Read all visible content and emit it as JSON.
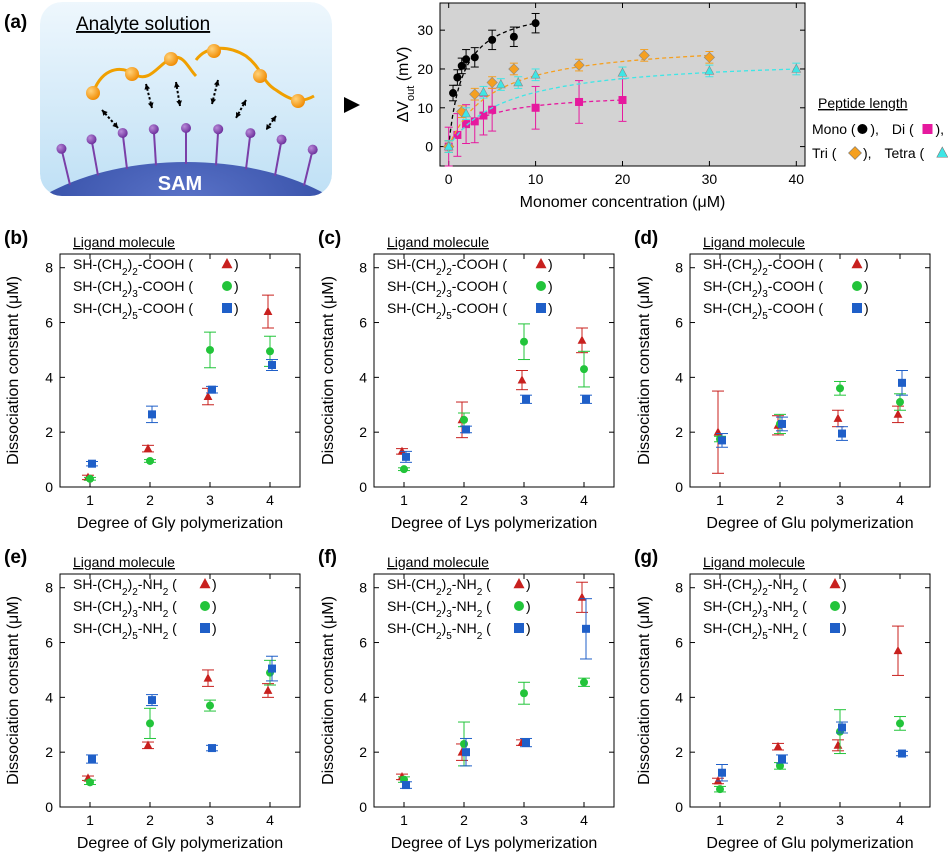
{
  "panel_a": {
    "label": "(a)",
    "schematic": {
      "title": "Analyte solution",
      "surface_label": "SAM"
    },
    "legend": {
      "title": "Peptide length",
      "entries": [
        {
          "text": "Mono (",
          "sep": "), "
        },
        {
          "text": "Di (",
          "sep": "),"
        },
        {
          "text": "Tri (",
          "sep": "), "
        },
        {
          "text": "Tetra (",
          "sep": ")"
        }
      ]
    }
  },
  "chart_data": [
    {
      "id": "a",
      "type": "scatter",
      "xlabel": "Monomer concentration (μM)",
      "ylabel_main": "ΔV",
      "ylabel_sub": "out",
      "ylabel_unit": " (mV)",
      "xlim": [
        -1,
        41
      ],
      "ylim": [
        -5,
        37
      ],
      "xticks": [
        0,
        10,
        20,
        30,
        40
      ],
      "yticks": [
        0,
        10,
        20,
        30
      ],
      "background": "#d3d3d3",
      "series": [
        {
          "name": "Mono",
          "marker": "circle",
          "color": "#000000",
          "fit_color": "#000000",
          "x": [
            0,
            0.5,
            1,
            1.5,
            2,
            3,
            5,
            7.5,
            10
          ],
          "y": [
            0,
            13.8,
            17.8,
            20.8,
            22.5,
            23.0,
            27.5,
            28.3,
            31.8
          ],
          "err": [
            1.5,
            2.0,
            2.0,
            2.0,
            2.5,
            2.5,
            2.5,
            2.5,
            2.5
          ]
        },
        {
          "name": "Di",
          "marker": "square",
          "color": "#e6199e",
          "fit_color": "#e6199e",
          "x": [
            0,
            1,
            2,
            3,
            4,
            5,
            10,
            15,
            20
          ],
          "y": [
            0,
            3.0,
            5.8,
            6.5,
            8.0,
            9.5,
            10.0,
            11.5,
            12.0
          ],
          "err": [
            5.0,
            5.5,
            5.0,
            5.5,
            5.0,
            5.5,
            5.5,
            5.5,
            5.5
          ]
        },
        {
          "name": "Tri",
          "marker": "diamond",
          "color": "#f5a020",
          "fit_color": "#f5a020",
          "x": [
            0,
            1.5,
            3,
            5,
            7.5,
            15,
            22.5,
            30
          ],
          "y": [
            0,
            9.0,
            13.5,
            16.5,
            20.0,
            21.0,
            23.5,
            23.0
          ],
          "err": [
            1.5,
            1.5,
            1.5,
            1.5,
            1.5,
            1.5,
            1.5,
            1.5
          ]
        },
        {
          "name": "Tetra",
          "marker": "triangle",
          "color": "#3ee6e6",
          "fit_color": "#3ee6e6",
          "x": [
            0,
            2,
            4,
            6,
            8,
            10,
            20,
            30,
            40
          ],
          "y": [
            0,
            8.5,
            14.0,
            16.0,
            16.5,
            18.5,
            19.0,
            19.5,
            20.0
          ],
          "err": [
            1.5,
            1.5,
            1.5,
            1.5,
            1.5,
            1.5,
            1.5,
            1.5,
            1.5
          ]
        }
      ]
    },
    {
      "id": "b",
      "type": "scatter",
      "panel_label": "(b)",
      "xlabel": "Degree of Gly polymerization",
      "ylabel": "Dissociation constant (μM)",
      "xlim": [
        0.5,
        4.5
      ],
      "ylim": [
        0,
        8.5
      ],
      "xticks": [
        1,
        2,
        3,
        4
      ],
      "yticks": [
        0,
        2,
        4,
        6,
        8
      ],
      "legend_title": "Ligand molecule",
      "series": [
        {
          "prefix": "SH-(CH",
          "n": "2",
          "suffix": ")",
          "n2": "2",
          "group": "-COOH (",
          "close": ")",
          "marker": "triangle",
          "color": "#c8201e",
          "x": [
            1,
            2,
            3,
            4
          ],
          "y": [
            0.35,
            1.4,
            3.3,
            6.4
          ],
          "err": [
            0.08,
            0.12,
            0.3,
            0.6
          ]
        },
        {
          "prefix": "SH-(CH",
          "n": "2",
          "suffix": ")",
          "n2": "3",
          "group": "-COOH (",
          "close": ")",
          "marker": "circle",
          "color": "#22c43a",
          "x": [
            1,
            2,
            3,
            4
          ],
          "y": [
            0.3,
            0.95,
            5.0,
            4.95
          ],
          "err": [
            0.05,
            0.05,
            0.65,
            0.55
          ]
        },
        {
          "prefix": "SH-(CH",
          "n": "2",
          "suffix": ")",
          "n2": "5",
          "group": "-COOH (",
          "close": ")",
          "marker": "square",
          "color": "#1f5fc8",
          "x": [
            1,
            2,
            3,
            4
          ],
          "y": [
            0.85,
            2.65,
            3.55,
            4.45
          ],
          "err": [
            0.08,
            0.3,
            0.12,
            0.2
          ]
        }
      ]
    },
    {
      "id": "c",
      "type": "scatter",
      "panel_label": "(c)",
      "xlabel": "Degree of Lys polymerization",
      "ylabel": "Dissociation constant (μM)",
      "xlim": [
        0.5,
        4.5
      ],
      "ylim": [
        0,
        8.5
      ],
      "xticks": [
        1,
        2,
        3,
        4
      ],
      "yticks": [
        0,
        2,
        4,
        6,
        8
      ],
      "legend_title": "Ligand molecule",
      "series": [
        {
          "prefix": "SH-(CH",
          "n": "2",
          "suffix": ")",
          "n2": "2",
          "group": "-COOH (",
          "close": ")",
          "marker": "triangle",
          "color": "#c8201e",
          "x": [
            1,
            2,
            3,
            4
          ],
          "y": [
            1.3,
            2.45,
            3.9,
            5.35
          ],
          "err": [
            0.1,
            0.65,
            0.35,
            0.45
          ]
        },
        {
          "prefix": "SH-(CH",
          "n": "2",
          "suffix": ")",
          "n2": "3",
          "group": "-COOH (",
          "close": ")",
          "marker": "circle",
          "color": "#22c43a",
          "x": [
            1,
            2,
            3,
            4
          ],
          "y": [
            0.65,
            2.45,
            5.3,
            4.3
          ],
          "err": [
            0.05,
            0.25,
            0.65,
            0.65
          ]
        },
        {
          "prefix": "SH-(CH",
          "n": "2",
          "suffix": ")",
          "n2": "5",
          "group": "-COOH (",
          "close": ")",
          "marker": "square",
          "color": "#1f5fc8",
          "x": [
            1,
            2,
            3,
            4
          ],
          "y": [
            1.1,
            2.1,
            3.2,
            3.2
          ],
          "err": [
            0.2,
            0.12,
            0.15,
            0.15
          ]
        }
      ]
    },
    {
      "id": "d",
      "type": "scatter",
      "panel_label": "(d)",
      "xlabel": "Degree of Glu polymerization",
      "ylabel": "Dissociation constant (μM)",
      "xlim": [
        0.5,
        4.5
      ],
      "ylim": [
        0,
        8.5
      ],
      "xticks": [
        1,
        2,
        3,
        4
      ],
      "yticks": [
        0,
        2,
        4,
        6,
        8
      ],
      "legend_title": "Ligand molecule",
      "series": [
        {
          "prefix": "SH-(CH",
          "n": "2",
          "suffix": ")",
          "n2": "2",
          "group": "-COOH (",
          "close": ")",
          "marker": "triangle",
          "color": "#c8201e",
          "x": [
            1,
            2,
            3,
            4
          ],
          "y": [
            2.0,
            2.25,
            2.5,
            2.65
          ],
          "err": [
            1.5,
            0.35,
            0.3,
            0.3
          ]
        },
        {
          "prefix": "SH-(CH",
          "n": "2",
          "suffix": ")",
          "n2": "3",
          "group": "-COOH (",
          "close": ")",
          "marker": "circle",
          "color": "#22c43a",
          "x": [
            1,
            2,
            3,
            4
          ],
          "y": [
            1.75,
            2.3,
            3.6,
            3.1
          ],
          "err": [
            0.1,
            0.35,
            0.25,
            0.3
          ]
        },
        {
          "prefix": "SH-(CH",
          "n": "2",
          "suffix": ")",
          "n2": "5",
          "group": "-COOH (",
          "close": ")",
          "marker": "square",
          "color": "#1f5fc8",
          "x": [
            1,
            2,
            3,
            4
          ],
          "y": [
            1.7,
            2.3,
            1.95,
            3.8
          ],
          "err": [
            0.25,
            0.25,
            0.25,
            0.45
          ]
        }
      ]
    },
    {
      "id": "e",
      "type": "scatter",
      "panel_label": "(e)",
      "xlabel": "Degree of Gly polymerization",
      "ylabel": "Dissociation constant (μM)",
      "xlim": [
        0.5,
        4.5
      ],
      "ylim": [
        0,
        8.5
      ],
      "xticks": [
        1,
        2,
        3,
        4
      ],
      "yticks": [
        0,
        2,
        4,
        6,
        8
      ],
      "legend_title": "Ligand molecule",
      "series": [
        {
          "prefix": "SH-(CH",
          "n": "2",
          "suffix": ")",
          "n2": "2",
          "group": "-NH",
          "group_sub": "2",
          "close": " (",
          "close2": ")",
          "marker": "triangle",
          "color": "#c8201e",
          "x": [
            1,
            2,
            3,
            4
          ],
          "y": [
            1.05,
            2.25,
            4.7,
            4.25
          ],
          "err": [
            0.08,
            0.12,
            0.3,
            0.25
          ]
        },
        {
          "prefix": "SH-(CH",
          "n": "2",
          "suffix": ")",
          "n2": "3",
          "group": "-NH",
          "group_sub": "2",
          "close": " (",
          "close2": ")",
          "marker": "circle",
          "color": "#22c43a",
          "x": [
            1,
            2,
            3,
            4
          ],
          "y": [
            0.9,
            3.05,
            3.7,
            4.9
          ],
          "err": [
            0.08,
            0.55,
            0.2,
            0.45
          ]
        },
        {
          "prefix": "SH-(CH",
          "n": "2",
          "suffix": ")",
          "n2": "5",
          "group": "-NH",
          "group_sub": "2",
          "close": " (",
          "close2": ")",
          "marker": "square",
          "color": "#1f5fc8",
          "x": [
            1,
            2,
            3,
            4
          ],
          "y": [
            1.75,
            3.9,
            2.15,
            5.05
          ],
          "err": [
            0.15,
            0.2,
            0.1,
            0.45
          ]
        }
      ]
    },
    {
      "id": "f",
      "type": "scatter",
      "panel_label": "(f)",
      "xlabel": "Degree of Lys polymerization",
      "ylabel": "Dissociation constant (μM)",
      "xlim": [
        0.5,
        4.5
      ],
      "ylim": [
        0,
        8.5
      ],
      "xticks": [
        1,
        2,
        3,
        4
      ],
      "yticks": [
        0,
        2,
        4,
        6,
        8
      ],
      "legend_title": "Ligand molecule",
      "series": [
        {
          "prefix": "SH-(CH",
          "n": "2",
          "suffix": ")",
          "n2": "2",
          "group": "-NH",
          "group_sub": "2",
          "close": " (",
          "close2": ")",
          "marker": "triangle",
          "color": "#c8201e",
          "x": [
            1,
            2,
            3,
            4
          ],
          "y": [
            1.1,
            2.0,
            2.35,
            7.65
          ],
          "err": [
            0.1,
            0.3,
            0.1,
            0.55
          ]
        },
        {
          "prefix": "SH-(CH",
          "n": "2",
          "suffix": ")",
          "n2": "3",
          "group": "-NH",
          "group_sub": "2",
          "close": " (",
          "close2": ")",
          "marker": "circle",
          "color": "#22c43a",
          "x": [
            1,
            2,
            3,
            4
          ],
          "y": [
            1.0,
            2.3,
            4.15,
            4.55
          ],
          "err": [
            0.1,
            0.8,
            0.4,
            0.15
          ]
        },
        {
          "prefix": "SH-(CH",
          "n": "2",
          "suffix": ")",
          "n2": "5",
          "group": "-NH",
          "group_sub": "2",
          "close": " (",
          "close2": ")",
          "marker": "square",
          "color": "#1f5fc8",
          "x": [
            1,
            2,
            3,
            4
          ],
          "y": [
            0.8,
            2.0,
            2.35,
            6.5
          ],
          "err": [
            0.12,
            0.5,
            0.15,
            1.1
          ]
        }
      ]
    },
    {
      "id": "g",
      "type": "scatter",
      "panel_label": "(g)",
      "xlabel": "Degree of Glu polymerization",
      "ylabel": "Dissociation constant (μM)",
      "xlim": [
        0.5,
        4.5
      ],
      "ylim": [
        0,
        8.5
      ],
      "xticks": [
        1,
        2,
        3,
        4
      ],
      "yticks": [
        0,
        2,
        4,
        6,
        8
      ],
      "legend_title": "Ligand molecule",
      "series": [
        {
          "prefix": "SH-(CH",
          "n": "2",
          "suffix": ")",
          "n2": "2",
          "group": "-NH",
          "group_sub": "2",
          "close": " (",
          "close2": ")",
          "marker": "triangle",
          "color": "#c8201e",
          "x": [
            1,
            2,
            3,
            4
          ],
          "y": [
            0.95,
            2.2,
            2.25,
            5.7
          ],
          "err": [
            0.1,
            0.12,
            0.2,
            0.9
          ]
        },
        {
          "prefix": "SH-(CH",
          "n": "2",
          "suffix": ")",
          "n2": "3",
          "group": "-NH",
          "group_sub": "2",
          "close": " (",
          "close2": ")",
          "marker": "circle",
          "color": "#22c43a",
          "x": [
            1,
            2,
            3,
            4
          ],
          "y": [
            0.65,
            1.5,
            2.75,
            3.05
          ],
          "err": [
            0.1,
            0.12,
            0.8,
            0.25
          ]
        },
        {
          "prefix": "SH-(CH",
          "n": "2",
          "suffix": ")",
          "n2": "5",
          "group": "-NH",
          "group_sub": "2",
          "close": " (",
          "close2": ")",
          "marker": "square",
          "color": "#1f5fc8",
          "x": [
            1,
            2,
            3,
            4
          ],
          "y": [
            1.25,
            1.75,
            2.9,
            1.95
          ],
          "err": [
            0.3,
            0.15,
            0.2,
            0.08
          ]
        }
      ]
    }
  ]
}
